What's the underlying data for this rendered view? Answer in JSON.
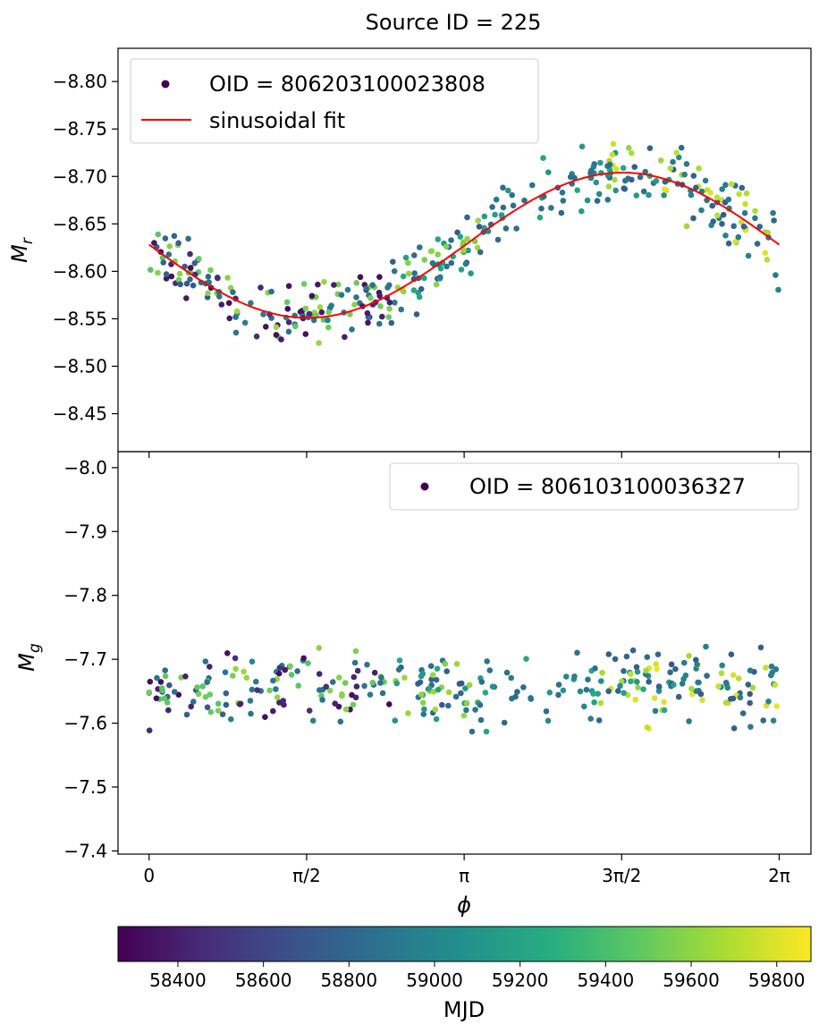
{
  "chart_data": {
    "title": "Source ID = 225",
    "type": "scatter",
    "xlabel": "ϕ",
    "x_tick_labels": [
      "0",
      "π/2",
      "π",
      "3π/2",
      "2π"
    ],
    "x_tick_values": [
      0,
      1.5708,
      3.1416,
      4.7124,
      6.2832
    ],
    "xlim": [
      -0.31,
      6.6
    ],
    "colorbar": {
      "label": "MJD",
      "colormap": "viridis",
      "range": [
        58260,
        59880
      ],
      "tick_values": [
        58400,
        58600,
        58800,
        59000,
        59200,
        59400,
        59600,
        59800
      ],
      "tick_labels": [
        "58400",
        "58600",
        "58800",
        "59000",
        "59200",
        "59400",
        "59600",
        "59800"
      ]
    },
    "panels": [
      {
        "id": "r-band",
        "ylabel": "M_r",
        "ylim": [
          -8.41,
          -8.835
        ],
        "y_tick_values": [
          -8.8,
          -8.75,
          -8.7,
          -8.65,
          -8.6,
          -8.55,
          -8.5,
          -8.45
        ],
        "y_tick_labels": [
          "−8.80",
          "−8.75",
          "−8.70",
          "−8.65",
          "−8.60",
          "−8.55",
          "−8.50",
          "−8.45"
        ],
        "legend": {
          "position": "top-left",
          "entries": [
            {
              "label": "OID = 806203100023808",
              "marker": "dot",
              "color": "#440154"
            },
            {
              "label": "sinusoidal fit",
              "marker": "line",
              "color": "#ff0000"
            }
          ]
        },
        "fit": {
          "mean": -8.6275,
          "amplitude": 0.0765,
          "phase_of_peak_brightness": 4.72,
          "color": "#ff0000"
        }
      },
      {
        "id": "g-band",
        "ylabel": "M_g",
        "ylim": [
          -7.395,
          -8.025
        ],
        "y_tick_values": [
          -8.0,
          -7.9,
          -7.8,
          -7.7,
          -7.6,
          -7.5,
          -7.4
        ],
        "y_tick_labels": [
          "−8.0",
          "−7.9",
          "−7.8",
          "−7.7",
          "−7.6",
          "−7.5",
          "−7.4"
        ],
        "legend": {
          "position": "top-right",
          "entries": [
            {
              "label": "OID = 806103100036327",
              "marker": "dot",
              "color": "#440154"
            }
          ]
        }
      }
    ]
  }
}
